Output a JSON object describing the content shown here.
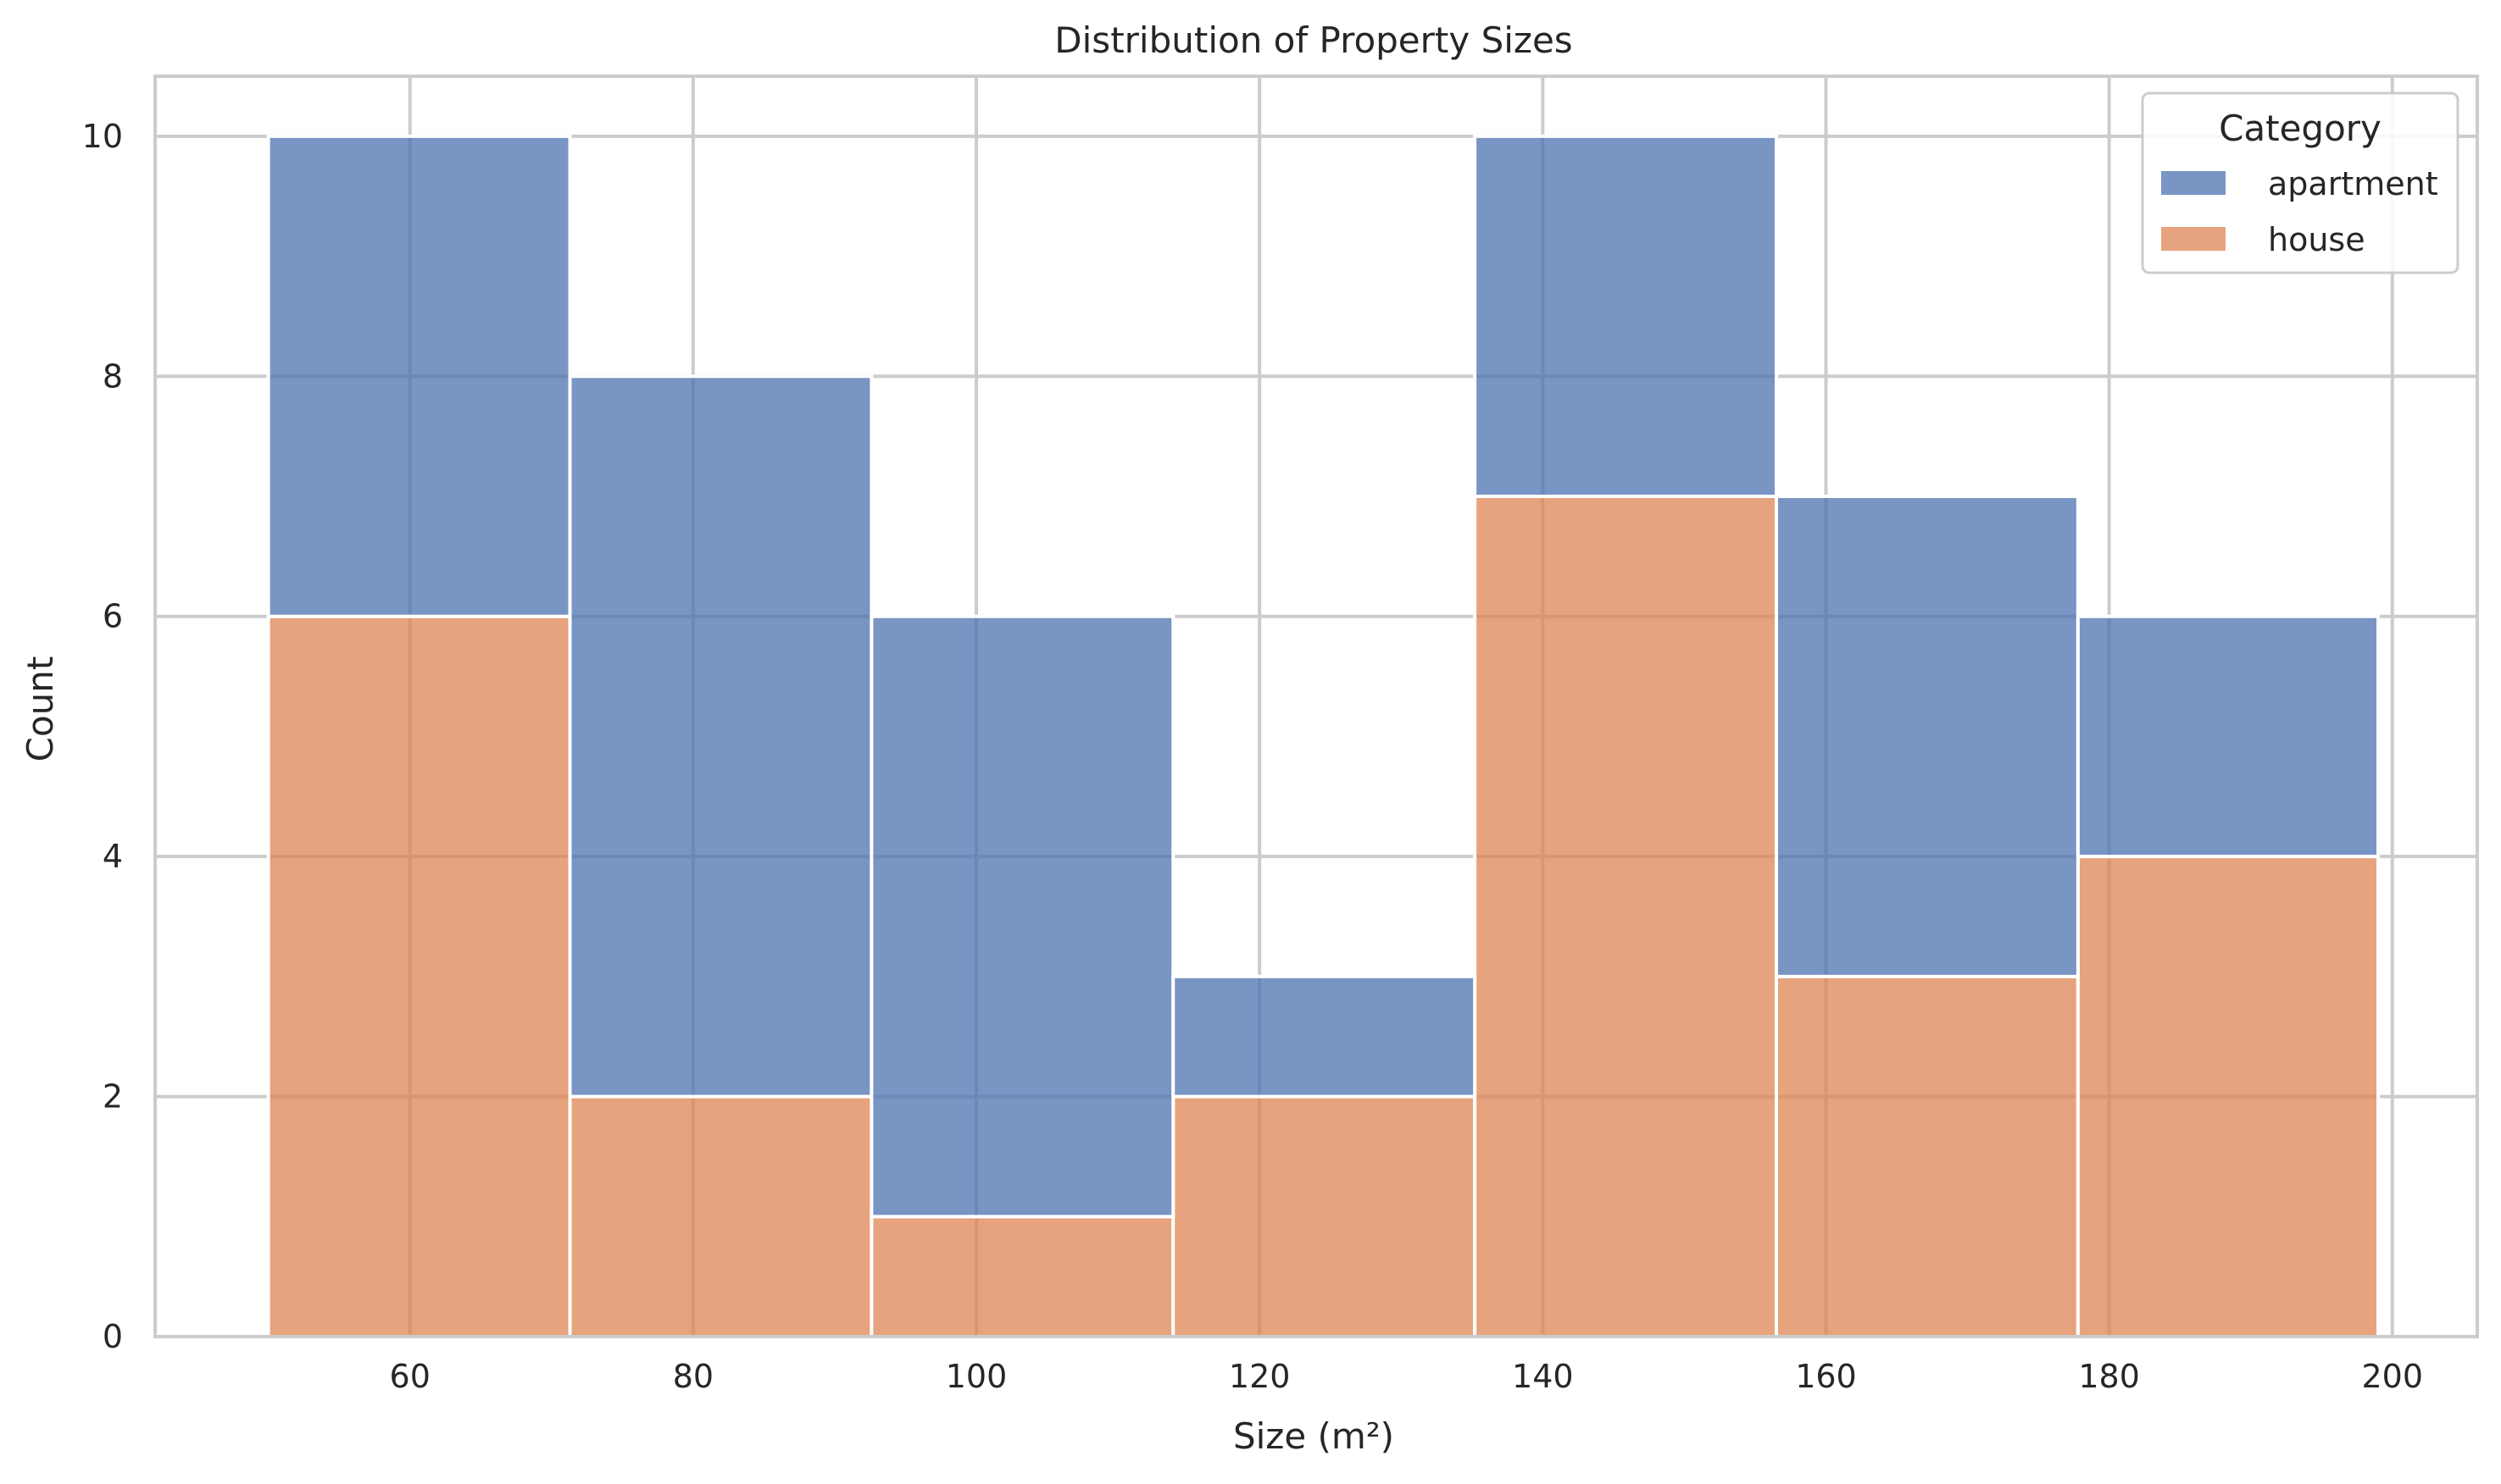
{
  "chart_data": {
    "type": "bar",
    "stacked": true,
    "histogram": true,
    "title": "Distribution of Property Sizes",
    "xlabel": "Size (m²)",
    "ylabel": "Count",
    "xlim": [
      42,
      206
    ],
    "ylim": [
      0,
      10.5
    ],
    "xticks": [
      60,
      80,
      100,
      120,
      140,
      160,
      180,
      200
    ],
    "yticks": [
      0,
      2,
      4,
      6,
      8,
      10
    ],
    "bin_edges": [
      50,
      71.3,
      92.6,
      113.9,
      135.2,
      156.5,
      177.8,
      199
    ],
    "grid": true,
    "legend": {
      "title": "Category",
      "position": "top-right"
    },
    "series": [
      {
        "name": "house",
        "color": "#dd8452",
        "values": [
          6,
          2,
          1,
          2,
          7,
          3,
          4
        ]
      },
      {
        "name": "apartment",
        "color": "#4c72b0",
        "values": [
          4,
          6,
          5,
          1,
          3,
          4,
          2
        ]
      }
    ]
  }
}
